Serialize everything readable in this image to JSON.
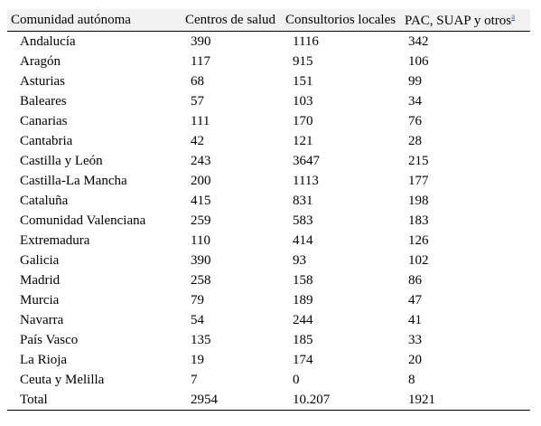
{
  "table": {
    "headers": {
      "region": "Comunidad autónoma",
      "health_centers": "Centros de salud",
      "local_clinics": "Consultorios locales",
      "pac": "PAC, SUAP y otros",
      "pac_footnote": "a"
    },
    "rows": [
      {
        "region": "Andalucía",
        "health_centers": "390",
        "local_clinics": "1116",
        "pac": "342"
      },
      {
        "region": "Aragón",
        "health_centers": "117",
        "local_clinics": "915",
        "pac": "106"
      },
      {
        "region": "Asturias",
        "health_centers": "68",
        "local_clinics": "151",
        "pac": "99"
      },
      {
        "region": "Baleares",
        "health_centers": "57",
        "local_clinics": "103",
        "pac": "34"
      },
      {
        "region": "Canarias",
        "health_centers": "111",
        "local_clinics": "170",
        "pac": "76"
      },
      {
        "region": "Cantabria",
        "health_centers": "42",
        "local_clinics": "121",
        "pac": "28"
      },
      {
        "region": "Castilla y León",
        "health_centers": "243",
        "local_clinics": "3647",
        "pac": "215"
      },
      {
        "region": "Castilla-La Mancha",
        "health_centers": "200",
        "local_clinics": "1113",
        "pac": "177"
      },
      {
        "region": "Cataluña",
        "health_centers": "415",
        "local_clinics": "831",
        "pac": "198"
      },
      {
        "region": "Comunidad Valenciana",
        "health_centers": "259",
        "local_clinics": "583",
        "pac": "183"
      },
      {
        "region": "Extremadura",
        "health_centers": "110",
        "local_clinics": "414",
        "pac": "126"
      },
      {
        "region": "Galicia",
        "health_centers": "390",
        "local_clinics": "93",
        "pac": "102"
      },
      {
        "region": "Madrid",
        "health_centers": "258",
        "local_clinics": "158",
        "pac": "86"
      },
      {
        "region": "Murcia",
        "health_centers": "79",
        "local_clinics": "189",
        "pac": "47"
      },
      {
        "region": "Navarra",
        "health_centers": "54",
        "local_clinics": "244",
        "pac": "41"
      },
      {
        "region": "País Vasco",
        "health_centers": "135",
        "local_clinics": "185",
        "pac": "33"
      },
      {
        "region": "La Rioja",
        "health_centers": "19",
        "local_clinics": "174",
        "pac": "20"
      },
      {
        "region": "Ceuta y Melilla",
        "health_centers": "7",
        "local_clinics": "0",
        "pac": "8"
      },
      {
        "region": "Total",
        "health_centers": "2954",
        "local_clinics": "10.207",
        "pac": "1921"
      }
    ]
  }
}
